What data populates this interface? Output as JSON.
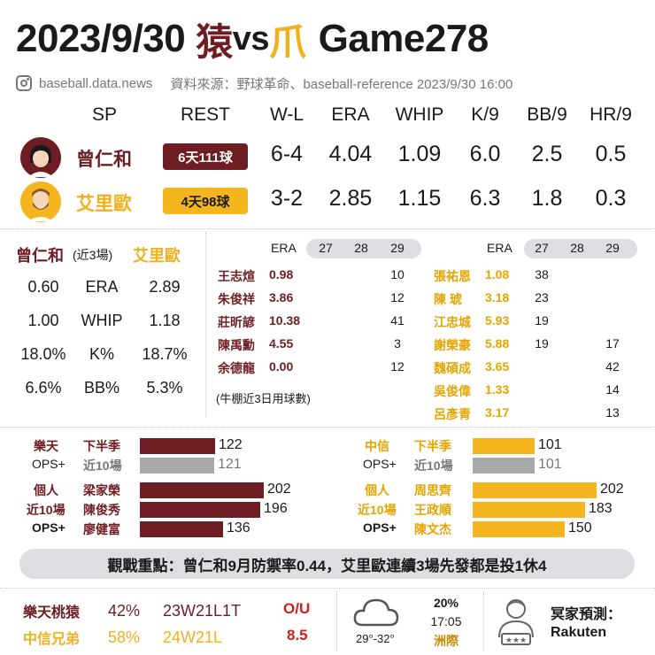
{
  "header": {
    "date": "2023/9/30",
    "team1_glyph": "猿",
    "vs": "vs",
    "team2_glyph": "爪",
    "game": "Game278"
  },
  "source": {
    "site": "baseball.data.news",
    "credit": "資料來源：野球革命、baseball-reference 2023/9/30 16:00"
  },
  "sp_table": {
    "headers": [
      "SP",
      "REST",
      "W-L",
      "ERA",
      "WHIP",
      "K/9",
      "BB/9",
      "HR/9"
    ],
    "rows": [
      {
        "name": "曾仁和",
        "rest": "6天111球",
        "wl": "6-4",
        "era": "4.04",
        "whip": "1.09",
        "k9": "6.0",
        "bb9": "2.5",
        "hr9": "0.5"
      },
      {
        "name": "艾里歐",
        "rest": "4天98球",
        "wl": "3-2",
        "era": "2.85",
        "whip": "1.15",
        "k9": "6.3",
        "bb9": "1.8",
        "hr9": "0.3"
      }
    ]
  },
  "recent_compare": {
    "left_name": "曾仁和",
    "note": "(近3場)",
    "right_name": "艾里歐",
    "rows": [
      {
        "left": "0.60",
        "label": "ERA",
        "right": "2.89"
      },
      {
        "left": "1.00",
        "label": "WHIP",
        "right": "1.18"
      },
      {
        "left": "18.0%",
        "label": "K%",
        "right": "18.7%"
      },
      {
        "left": "6.6%",
        "label": "BB%",
        "right": "5.3%"
      }
    ]
  },
  "bullpen": {
    "era_label": "ERA",
    "days": [
      "27",
      "28",
      "29"
    ],
    "note": "(牛棚近3日用球數)",
    "left": [
      {
        "name": "王志煊",
        "era": "0.98",
        "d27": "",
        "d28": "",
        "d29": "10"
      },
      {
        "name": "朱俊祥",
        "era": "3.86",
        "d27": "",
        "d28": "",
        "d29": "12"
      },
      {
        "name": "莊昕諺",
        "era": "10.38",
        "d27": "",
        "d28": "",
        "d29": "41"
      },
      {
        "name": "陳禹勳",
        "era": "4.55",
        "d27": "",
        "d28": "",
        "d29": "3"
      },
      {
        "name": "余德龍",
        "era": "0.00",
        "d27": "",
        "d28": "",
        "d29": "12"
      }
    ],
    "right": [
      {
        "name": "張祐恩",
        "era": "1.08",
        "d27": "38",
        "d28": "",
        "d29": ""
      },
      {
        "name": "陳 琥",
        "era": "3.18",
        "d27": "23",
        "d28": "",
        "d29": ""
      },
      {
        "name": "江忠城",
        "era": "5.93",
        "d27": "19",
        "d28": "",
        "d29": ""
      },
      {
        "name": "謝榮豪",
        "era": "5.88",
        "d27": "19",
        "d28": "",
        "d29": "17"
      },
      {
        "name": "魏碩成",
        "era": "3.65",
        "d27": "",
        "d28": "",
        "d29": "42"
      },
      {
        "name": "吳俊偉",
        "era": "1.33",
        "d27": "",
        "d28": "",
        "d29": "14"
      },
      {
        "name": "呂彥青",
        "era": "3.17",
        "d27": "",
        "d28": "",
        "d29": "13"
      }
    ]
  },
  "ops": {
    "left": {
      "team": "樂天",
      "ops_label": "OPS+",
      "team_rows": [
        {
          "label": "下半季",
          "value": 122,
          "color": "#6e1e22"
        },
        {
          "label": "近10場",
          "value": 121,
          "color": "#a8a8a8"
        }
      ],
      "indiv_labels": [
        "個人",
        "近10場",
        "OPS+"
      ],
      "players": [
        {
          "name": "梁家榮",
          "value": 202
        },
        {
          "name": "陳俊秀",
          "value": 196
        },
        {
          "name": "廖健富",
          "value": 136
        }
      ]
    },
    "right": {
      "team": "中信",
      "ops_label": "OPS+",
      "team_rows": [
        {
          "label": "下半季",
          "value": 101,
          "color": "#f5b51e"
        },
        {
          "label": "近10場",
          "value": 101,
          "color": "#a8a8a8"
        }
      ],
      "indiv_labels": [
        "個人",
        "近10場",
        "OPS+"
      ],
      "players": [
        {
          "name": "周思齊",
          "value": 202
        },
        {
          "name": "王政順",
          "value": 183
        },
        {
          "name": "陳文杰",
          "value": 150
        }
      ]
    }
  },
  "highlight": "觀戰重點：曾仁和9月防禦率0.44，艾里歐連續3場先發都是投1休4",
  "footer": {
    "team1": {
      "name": "樂天桃猿",
      "pct": "42%",
      "record": "23W21L1T"
    },
    "team2": {
      "name": "中信兄弟",
      "pct": "58%",
      "record": "24W21L"
    },
    "ou_label": "O/U",
    "ou_value": "8.5",
    "weather": {
      "rain": "20%",
      "time": "17:05",
      "temp": "29°-32°",
      "venue": "洲際"
    },
    "predict_label": "冥家預測：",
    "predict_value": "Rakuten"
  },
  "colors": {
    "maroon": "#6e1e22",
    "gold": "#f5b51e",
    "grey": "#a8a8a8"
  }
}
